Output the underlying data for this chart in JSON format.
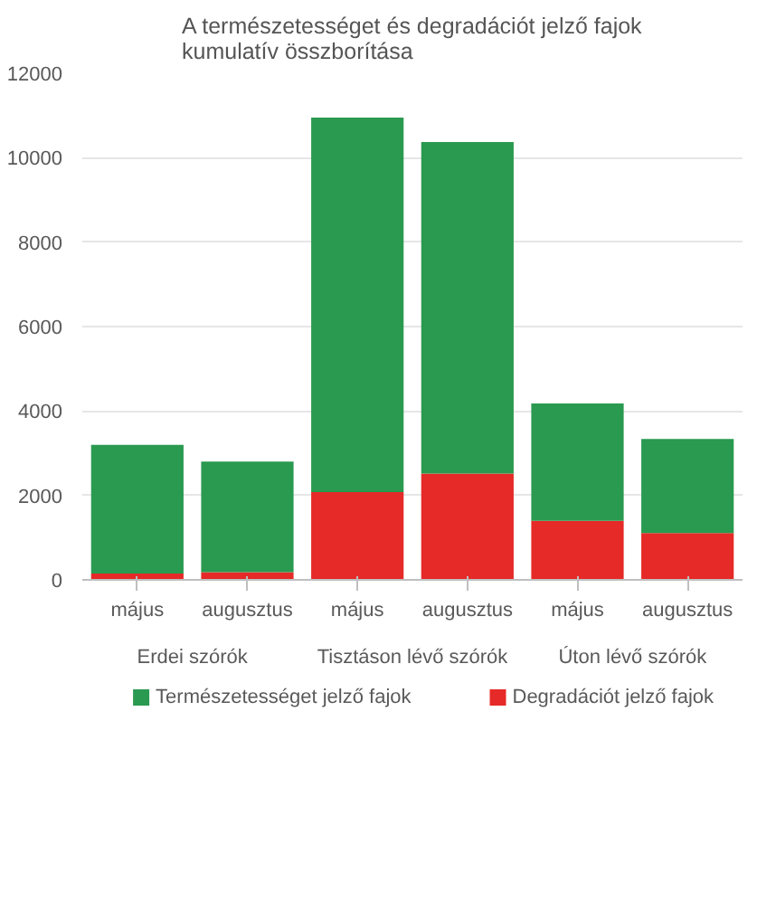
{
  "chart_data": {
    "type": "bar",
    "title": "A természetességet és degradációt jelző fajok kumulatív összborítása",
    "categories": [
      "május",
      "augusztus",
      "május",
      "augusztus",
      "május",
      "augusztus"
    ],
    "annotations": [
      "Erdei szórók",
      "Tisztáson lévő szórók",
      "Úton lévő szórók"
    ],
    "stacked": true,
    "series": [
      {
        "name": "Degradációt jelző fajok",
        "color": "#e52a27",
        "values": [
          150,
          180,
          2080,
          2520,
          1400,
          1110
        ]
      },
      {
        "name": "Természetességet jelző fajok",
        "color": "#2a9a50",
        "values": [
          3050,
          2620,
          8870,
          7850,
          2780,
          2230
        ]
      }
    ],
    "ylim": [
      0,
      12000
    ],
    "yticks": [
      0,
      2000,
      4000,
      6000,
      8000,
      10000,
      12000
    ],
    "grid": "y",
    "legend": "bottom"
  }
}
